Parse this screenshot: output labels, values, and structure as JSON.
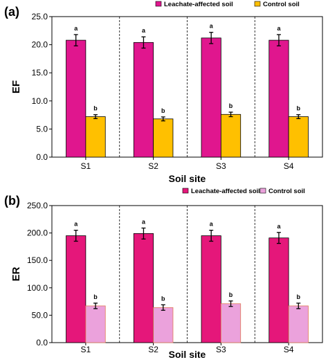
{
  "chart_data": [
    {
      "panel_label": "(a)",
      "type": "bar",
      "categories": [
        "S1",
        "S2",
        "S3",
        "S4"
      ],
      "xlabel": "Soil site",
      "ylabel": "EF",
      "ylim": [
        0,
        25
      ],
      "yticks": [
        "0.0",
        "5.0",
        "10.0",
        "15.0",
        "20.0",
        "25.0"
      ],
      "legend_position": "top",
      "series": [
        {
          "name": "Leachate-affected soil",
          "color": "#E0168E",
          "values": [
            20.8,
            20.4,
            21.2,
            20.8
          ],
          "errors": [
            1.0,
            1.0,
            1.0,
            1.0
          ],
          "labels": [
            "a",
            "a",
            "a",
            "a"
          ]
        },
        {
          "name": "Control soil",
          "color": "#FFC000",
          "values": [
            7.2,
            6.8,
            7.6,
            7.2
          ],
          "errors": [
            0.35,
            0.35,
            0.4,
            0.35
          ],
          "labels": [
            "b",
            "b",
            "b",
            "b"
          ]
        }
      ]
    },
    {
      "panel_label": "(b)",
      "type": "bar",
      "categories": [
        "S1",
        "S2",
        "S3",
        "S4"
      ],
      "xlabel": "Soil site",
      "ylabel": "ER",
      "ylim": [
        0,
        250
      ],
      "yticks": [
        "0.0",
        "50.0",
        "100.0",
        "150.0",
        "200.0",
        "250.0"
      ],
      "legend_position": "top",
      "series": [
        {
          "name": "Leachate-affected soil",
          "color": "#E5177A",
          "values": [
            195,
            199,
            195,
            191
          ],
          "errors": [
            10,
            10,
            10,
            10
          ],
          "labels": [
            "a",
            "a",
            "a",
            "a"
          ]
        },
        {
          "name": "Control soil",
          "color": "#EBA2DC",
          "values": [
            67,
            64,
            71,
            67
          ],
          "errors": [
            5,
            5,
            5,
            5
          ],
          "labels": [
            "b",
            "b",
            "b",
            "b"
          ]
        }
      ]
    }
  ]
}
